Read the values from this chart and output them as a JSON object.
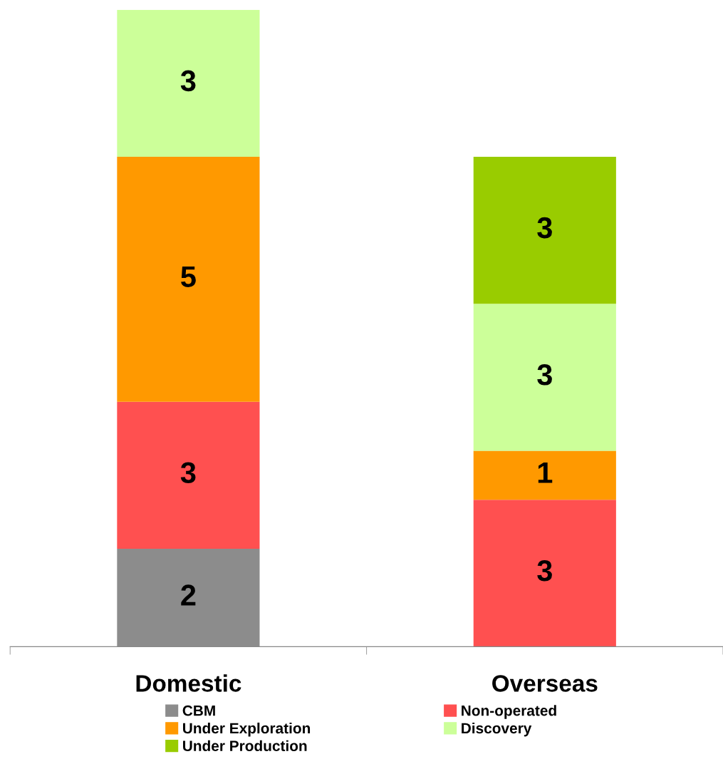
{
  "chart_data": {
    "type": "bar",
    "stacked": true,
    "categories": [
      "Domestic",
      "Overseas"
    ],
    "series": [
      {
        "name": "CBM",
        "color": "#8c8c8c",
        "values": [
          2,
          null
        ]
      },
      {
        "name": "Non-operated",
        "color": "#ff5050",
        "values": [
          3,
          3
        ]
      },
      {
        "name": "Under Exploration",
        "color": "#ff9900",
        "values": [
          5,
          1
        ]
      },
      {
        "name": "Discovery",
        "color": "#ccff99",
        "values": [
          3,
          3
        ]
      },
      {
        "name": "Under Production",
        "color": "#99cc00",
        "values": [
          null,
          3
        ]
      }
    ],
    "data_labels": true,
    "legend": "bottom",
    "grid": false
  }
}
